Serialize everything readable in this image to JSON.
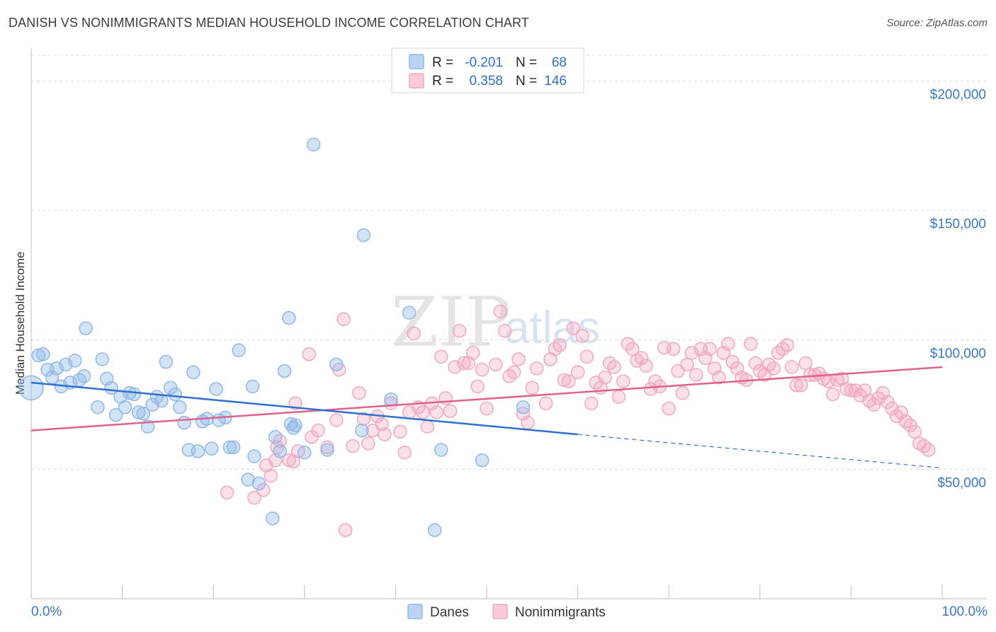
{
  "header": {
    "title": "DANISH VS NONIMMIGRANTS MEDIAN HOUSEHOLD INCOME CORRELATION CHART",
    "source": "Source: ZipAtlas.com"
  },
  "watermark": {
    "zip": "ZIP",
    "atlas": "atlas"
  },
  "legend": {
    "r_label": "R =",
    "n_label": "N =",
    "danes": {
      "r": "-0.201",
      "n": "68"
    },
    "nonimmigrants": {
      "r": "0.358",
      "n": "146"
    }
  },
  "bottom_legend": {
    "danes": "Danes",
    "nonimmigrants": "Nonimmigrants"
  },
  "chart_data": {
    "type": "scatter",
    "title": "DANISH VS NONIMMIGRANTS MEDIAN HOUSEHOLD INCOME CORRELATION CHART",
    "xlabel": "",
    "ylabel": "Median Household Income",
    "xlim": [
      0,
      100
    ],
    "ylim": [
      0,
      210000
    ],
    "x_tick_labels": [
      "0.0%",
      "100.0%"
    ],
    "y_ticks": [
      50000,
      100000,
      150000,
      200000
    ],
    "y_tick_labels": [
      "$50,000",
      "$100,000",
      "$150,000",
      "$200,000"
    ],
    "grid": true,
    "legend_position": "top-center",
    "colors": {
      "danes": "#8fb8e8",
      "danes_line": "#2f6fd0",
      "nonimmigrants": "#f2a7bf",
      "nonimmigrants_line": "#e0608e"
    },
    "series": [
      {
        "name": "Danes",
        "trend": {
          "x": [
            0,
            60
          ],
          "y": [
            83500,
            63500
          ],
          "dashed_to": [
            100,
            50500
          ]
        },
        "points": [
          [
            0.0,
            81500
          ],
          [
            0.8,
            94000
          ],
          [
            1.3,
            94500
          ],
          [
            1.8,
            88500
          ],
          [
            2.3,
            85500
          ],
          [
            2.8,
            89000
          ],
          [
            3.3,
            82000
          ],
          [
            3.8,
            90500
          ],
          [
            4.3,
            83500
          ],
          [
            4.8,
            92000
          ],
          [
            5.3,
            84500
          ],
          [
            5.8,
            86000
          ],
          [
            6.0,
            104500
          ],
          [
            7.3,
            74000
          ],
          [
            7.8,
            92500
          ],
          [
            8.3,
            85000
          ],
          [
            8.8,
            81500
          ],
          [
            9.3,
            71000
          ],
          [
            9.8,
            78000
          ],
          [
            10.3,
            74000
          ],
          [
            10.8,
            79500
          ],
          [
            11.3,
            79000
          ],
          [
            11.8,
            72000
          ],
          [
            12.3,
            71500
          ],
          [
            12.8,
            66500
          ],
          [
            13.3,
            75000
          ],
          [
            13.8,
            78000
          ],
          [
            14.3,
            76500
          ],
          [
            14.8,
            91500
          ],
          [
            15.3,
            81500
          ],
          [
            15.8,
            79000
          ],
          [
            16.3,
            74000
          ],
          [
            16.8,
            68000
          ],
          [
            17.3,
            57500
          ],
          [
            17.8,
            87500
          ],
          [
            18.3,
            57000
          ],
          [
            18.8,
            68500
          ],
          [
            19.3,
            69500
          ],
          [
            19.8,
            58000
          ],
          [
            20.3,
            81000
          ],
          [
            20.6,
            69000
          ],
          [
            21.3,
            70000
          ],
          [
            21.8,
            58500
          ],
          [
            22.2,
            58500
          ],
          [
            22.8,
            96000
          ],
          [
            23.8,
            46000
          ],
          [
            24.3,
            82000
          ],
          [
            24.5,
            55000
          ],
          [
            25.0,
            44500
          ],
          [
            26.5,
            31000
          ],
          [
            26.8,
            62500
          ],
          [
            27.3,
            57000
          ],
          [
            27.8,
            88000
          ],
          [
            28.3,
            108500
          ],
          [
            28.5,
            67500
          ],
          [
            28.8,
            66000
          ],
          [
            29.0,
            67000
          ],
          [
            30.0,
            56500
          ],
          [
            31.0,
            175500
          ],
          [
            32.5,
            57500
          ],
          [
            33.5,
            90500
          ],
          [
            36.5,
            140500
          ],
          [
            36.3,
            65000
          ],
          [
            39.5,
            77000
          ],
          [
            41.5,
            110500
          ],
          [
            45.0,
            57500
          ],
          [
            44.3,
            26500
          ],
          [
            49.5,
            53500
          ],
          [
            54.0,
            74000
          ]
        ]
      },
      {
        "name": "Nonimmigrants",
        "trend": {
          "x": [
            0,
            100
          ],
          "y": [
            65000,
            89500
          ]
        },
        "points": [
          [
            21.5,
            41000
          ],
          [
            24.5,
            39000
          ],
          [
            25.5,
            42000
          ],
          [
            25.8,
            51500
          ],
          [
            26.3,
            47500
          ],
          [
            26.8,
            53500
          ],
          [
            27.0,
            58500
          ],
          [
            27.3,
            61000
          ],
          [
            28.3,
            53500
          ],
          [
            28.8,
            53000
          ],
          [
            29.0,
            75500
          ],
          [
            29.3,
            57000
          ],
          [
            30.5,
            94500
          ],
          [
            30.8,
            62500
          ],
          [
            31.5,
            65000
          ],
          [
            32.5,
            58500
          ],
          [
            33.5,
            69000
          ],
          [
            33.8,
            88500
          ],
          [
            34.3,
            108000
          ],
          [
            34.5,
            26500
          ],
          [
            35.3,
            59000
          ],
          [
            36.0,
            79500
          ],
          [
            36.5,
            69500
          ],
          [
            37.0,
            60000
          ],
          [
            37.5,
            65000
          ],
          [
            38.0,
            70500
          ],
          [
            38.5,
            67500
          ],
          [
            38.8,
            63500
          ],
          [
            39.5,
            75500
          ],
          [
            40.5,
            64500
          ],
          [
            41.0,
            56500
          ],
          [
            41.5,
            72000
          ],
          [
            42.0,
            102500
          ],
          [
            42.5,
            74000
          ],
          [
            43.0,
            72000
          ],
          [
            43.5,
            66500
          ],
          [
            44.0,
            75500
          ],
          [
            44.5,
            72000
          ],
          [
            45.0,
            93500
          ],
          [
            45.5,
            77500
          ],
          [
            46.0,
            72500
          ],
          [
            46.5,
            89500
          ],
          [
            47.0,
            103500
          ],
          [
            47.5,
            91000
          ],
          [
            48.0,
            91000
          ],
          [
            48.5,
            95000
          ],
          [
            49.0,
            82000
          ],
          [
            49.5,
            88500
          ],
          [
            50.0,
            73500
          ],
          [
            51.0,
            90500
          ],
          [
            51.5,
            111000
          ],
          [
            52.0,
            103500
          ],
          [
            52.5,
            86000
          ],
          [
            53.0,
            87500
          ],
          [
            53.5,
            92500
          ],
          [
            54.0,
            71500
          ],
          [
            54.5,
            68000
          ],
          [
            55.0,
            81500
          ],
          [
            55.5,
            89000
          ],
          [
            56.5,
            75500
          ],
          [
            57.0,
            92500
          ],
          [
            57.5,
            96500
          ],
          [
            58.0,
            98000
          ],
          [
            58.5,
            84500
          ],
          [
            59.0,
            84000
          ],
          [
            59.5,
            104500
          ],
          [
            60.0,
            87500
          ],
          [
            60.5,
            101500
          ],
          [
            61.0,
            93500
          ],
          [
            61.5,
            75500
          ],
          [
            62.0,
            83500
          ],
          [
            62.5,
            81500
          ],
          [
            63.0,
            85500
          ],
          [
            63.5,
            91000
          ],
          [
            64.0,
            89500
          ],
          [
            64.5,
            78000
          ],
          [
            65.0,
            84000
          ],
          [
            65.5,
            98500
          ],
          [
            66.0,
            96500
          ],
          [
            66.5,
            92000
          ],
          [
            67.0,
            93000
          ],
          [
            67.5,
            90000
          ],
          [
            68.0,
            81000
          ],
          [
            68.5,
            84000
          ],
          [
            69.0,
            82000
          ],
          [
            69.5,
            97000
          ],
          [
            70.0,
            73500
          ],
          [
            70.5,
            96500
          ],
          [
            71.0,
            88000
          ],
          [
            71.5,
            79500
          ],
          [
            72.0,
            90500
          ],
          [
            72.5,
            95000
          ],
          [
            73.0,
            86500
          ],
          [
            73.5,
            96500
          ],
          [
            74.0,
            93000
          ],
          [
            74.5,
            96500
          ],
          [
            75.0,
            89000
          ],
          [
            75.5,
            85500
          ],
          [
            76.0,
            95000
          ],
          [
            76.5,
            98500
          ],
          [
            77.0,
            91500
          ],
          [
            77.5,
            89000
          ],
          [
            78.0,
            85500
          ],
          [
            78.5,
            84500
          ],
          [
            79.0,
            98500
          ],
          [
            79.5,
            91000
          ],
          [
            80.0,
            88000
          ],
          [
            80.5,
            86500
          ],
          [
            81.0,
            90500
          ],
          [
            81.5,
            89000
          ],
          [
            82.0,
            95000
          ],
          [
            82.5,
            96500
          ],
          [
            83.0,
            98000
          ],
          [
            83.5,
            89500
          ],
          [
            84.0,
            82500
          ],
          [
            84.5,
            82500
          ],
          [
            85.0,
            91000
          ],
          [
            85.5,
            86500
          ],
          [
            86.0,
            86500
          ],
          [
            86.5,
            87000
          ],
          [
            87.0,
            85000
          ],
          [
            87.5,
            84000
          ],
          [
            88.0,
            79000
          ],
          [
            88.5,
            84500
          ],
          [
            89.0,
            85000
          ],
          [
            89.5,
            81000
          ],
          [
            90.0,
            80500
          ],
          [
            90.5,
            80500
          ],
          [
            91.0,
            78500
          ],
          [
            91.5,
            80500
          ],
          [
            92.0,
            76500
          ],
          [
            92.5,
            75000
          ],
          [
            93.0,
            77500
          ],
          [
            93.5,
            79500
          ],
          [
            94.0,
            76000
          ],
          [
            94.5,
            73500
          ],
          [
            95.0,
            70500
          ],
          [
            95.5,
            72000
          ],
          [
            96.0,
            68500
          ],
          [
            96.5,
            67000
          ],
          [
            97.0,
            64500
          ],
          [
            97.5,
            60000
          ],
          [
            98.0,
            59000
          ],
          [
            98.5,
            57500
          ]
        ]
      }
    ]
  }
}
